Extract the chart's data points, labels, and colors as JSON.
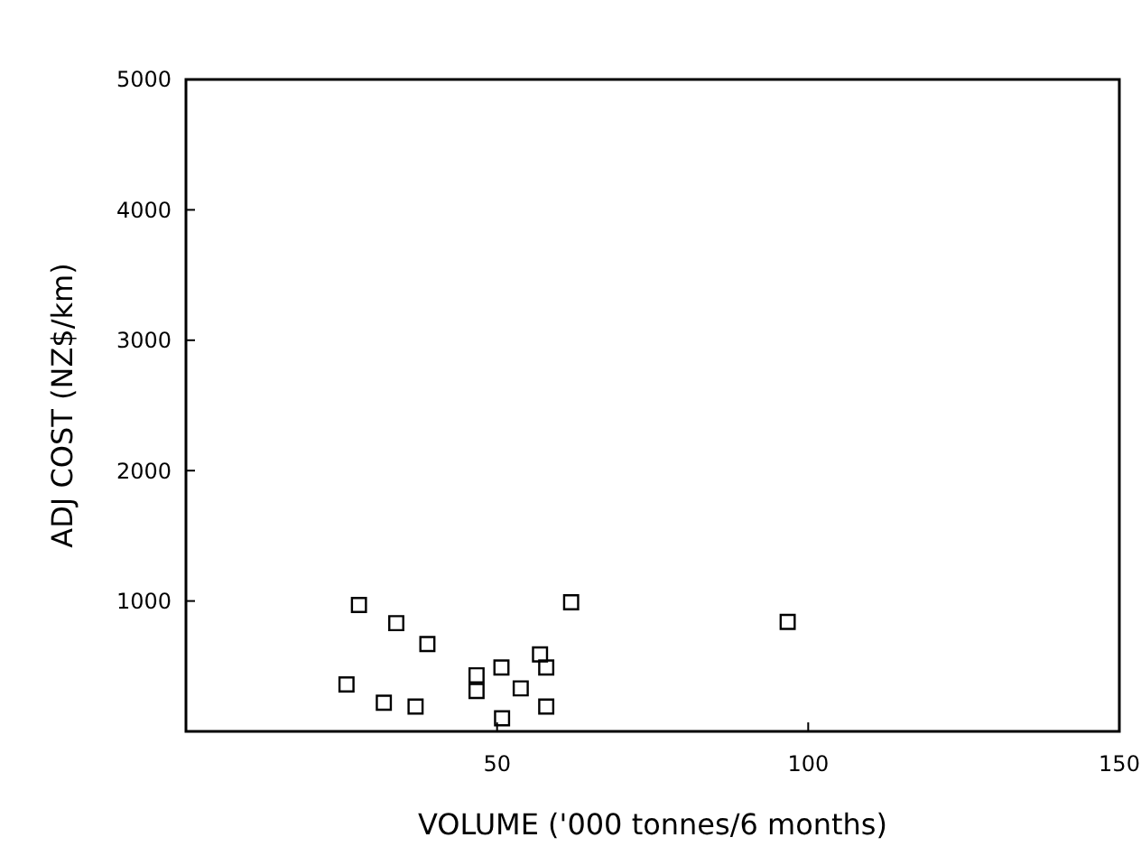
{
  "chart_data": {
    "type": "scatter",
    "xlabel": "VOLUME ('000 tonnes/6 months)",
    "ylabel": "ADJ COST (NZ$/km)",
    "x": [
      27.8,
      33.8,
      38.8,
      25.8,
      31.8,
      36.9,
      46.7,
      46.7,
      50.7,
      50.8,
      53.8,
      56.9,
      57.9,
      57.9,
      61.9,
      96.7
    ],
    "values": [
      970,
      830,
      670,
      360,
      220,
      190,
      430,
      310,
      490,
      100,
      330,
      590,
      490,
      190,
      990,
      840
    ],
    "color": "#000000",
    "marker": "square",
    "xlim": [
      0,
      150
    ],
    "xticks": [
      50,
      100,
      150
    ],
    "ylim": [
      0,
      5000
    ],
    "yticks": [
      1000,
      2000,
      3000,
      4000,
      5000
    ],
    "grid": false
  }
}
